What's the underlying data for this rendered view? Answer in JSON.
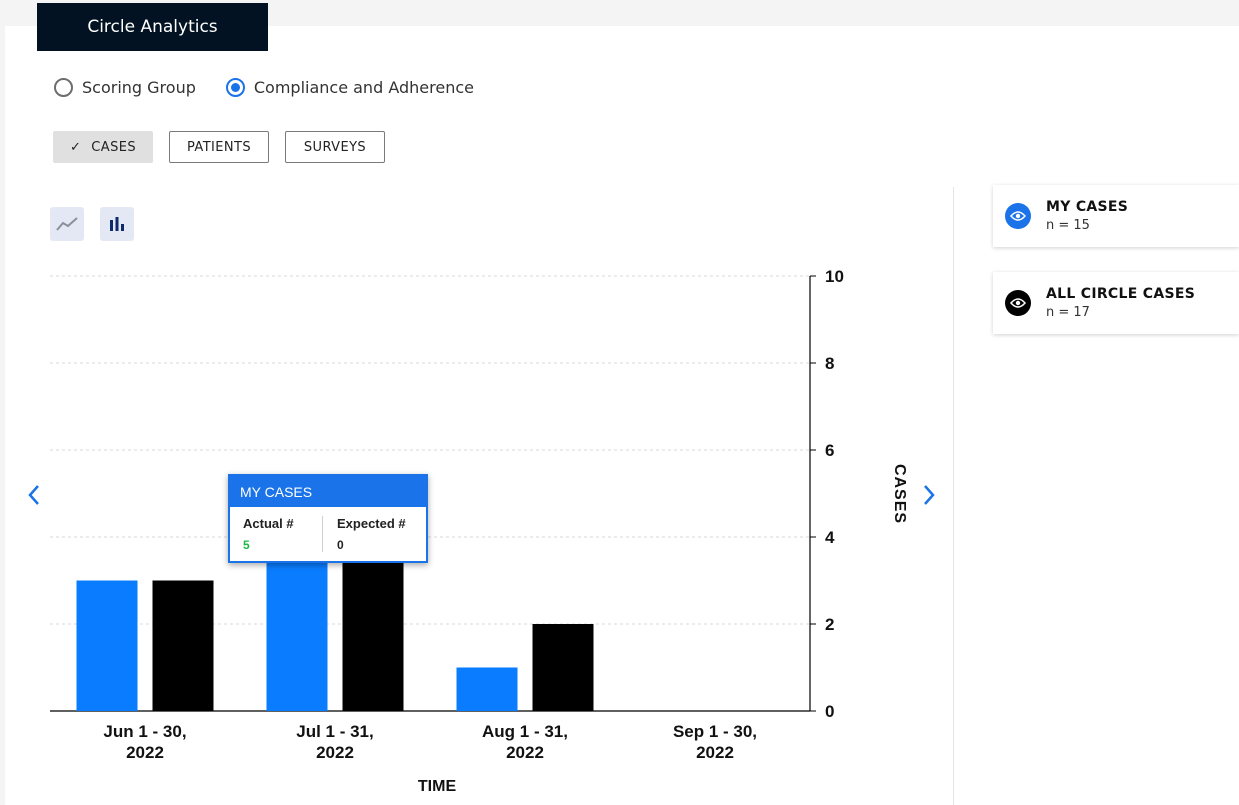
{
  "app": {
    "title": "Circle Analytics"
  },
  "mode_options": [
    {
      "label": "Scoring Group",
      "selected": false
    },
    {
      "label": "Compliance and Adherence",
      "selected": true
    }
  ],
  "metric_tabs": [
    {
      "label": "CASES",
      "active": true
    },
    {
      "label": "PATIENTS",
      "active": false
    },
    {
      "label": "SURVEYS",
      "active": false
    }
  ],
  "view_toggle": {
    "line_icon": "line-chart-icon",
    "bar_icon": "bar-chart-icon",
    "active": "bar"
  },
  "legend": [
    {
      "name": "MY CASES",
      "count": "n = 15",
      "color": "#1a73e8",
      "icon": "eye-icon"
    },
    {
      "name": "ALL CIRCLE CASES",
      "count": "n = 17",
      "color": "#000000",
      "icon": "eye-icon"
    }
  ],
  "tooltip": {
    "title": "MY CASES",
    "actual_label": "Actual #",
    "actual_value": "5",
    "expected_label": "Expected #",
    "expected_value": "0",
    "actual_color": "#1db74a"
  },
  "chart_data": {
    "type": "bar",
    "categories": [
      [
        "Jun 1 - 30,",
        "2022"
      ],
      [
        "Jul 1 - 31,",
        "2022"
      ],
      [
        "Aug 1 - 31,",
        "2022"
      ],
      [
        "Sep 1 - 30,",
        "2022"
      ]
    ],
    "series": [
      {
        "name": "MY CASES",
        "color": "#0a7cff",
        "values": [
          3,
          5,
          1,
          0
        ]
      },
      {
        "name": "ALL CIRCLE CASES",
        "color": "#000000",
        "values": [
          3,
          5,
          2,
          0
        ]
      }
    ],
    "xlabel": "TIME",
    "ylabel": "CASES",
    "ylim": [
      0,
      10
    ],
    "yticks": [
      0,
      2,
      4,
      6,
      8,
      10
    ],
    "y_axis_side": "right",
    "grid": true
  }
}
